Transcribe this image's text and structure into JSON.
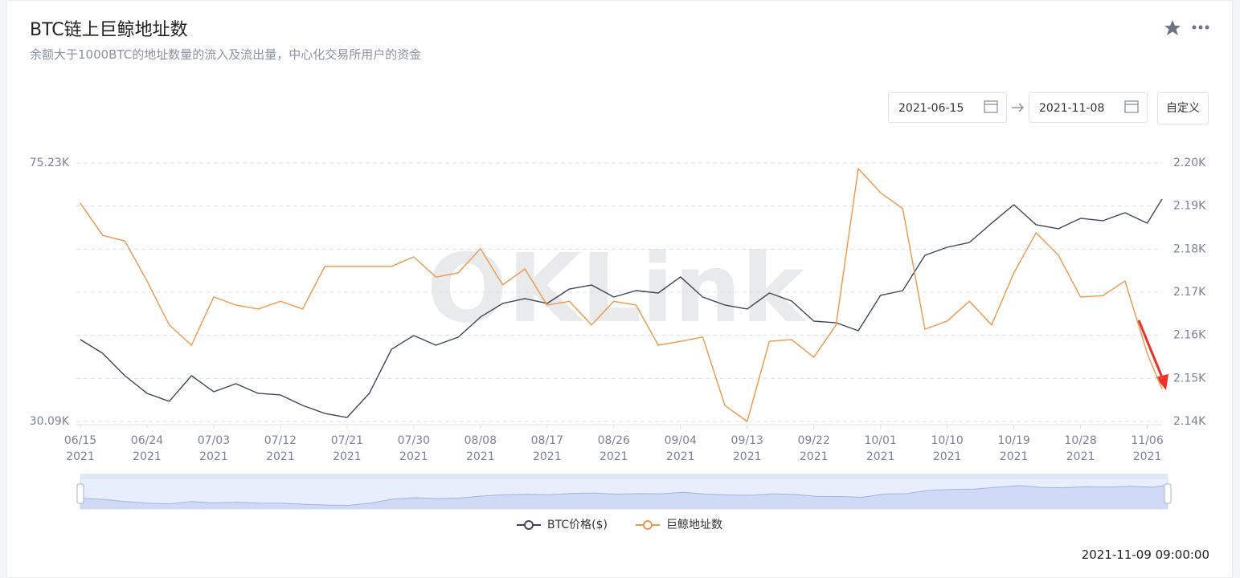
{
  "ui": {
    "start_date": "2021-06-15",
    "end_date": "2021-11-08",
    "custom_button": "自定义",
    "timestamp": "2021-11-09 09:00:00"
  },
  "chart_data": {
    "type": "line",
    "title": "BTC链上巨鲸地址数",
    "subtitle": "余额大于1000BTC的地址数量的流入及流出量，中心化交易所用户的资金",
    "watermark": "OKLink",
    "grid": true,
    "legend": "bottom",
    "x": [
      "2021-06-15",
      "2021-06-18",
      "2021-06-21",
      "2021-06-24",
      "2021-06-27",
      "2021-06-30",
      "2021-07-03",
      "2021-07-06",
      "2021-07-09",
      "2021-07-12",
      "2021-07-15",
      "2021-07-18",
      "2021-07-21",
      "2021-07-24",
      "2021-07-27",
      "2021-07-30",
      "2021-08-02",
      "2021-08-05",
      "2021-08-08",
      "2021-08-11",
      "2021-08-14",
      "2021-08-17",
      "2021-08-20",
      "2021-08-23",
      "2021-08-26",
      "2021-08-29",
      "2021-09-01",
      "2021-09-04",
      "2021-09-07",
      "2021-09-10",
      "2021-09-13",
      "2021-09-16",
      "2021-09-19",
      "2021-09-22",
      "2021-09-25",
      "2021-09-28",
      "2021-10-01",
      "2021-10-04",
      "2021-10-07",
      "2021-10-10",
      "2021-10-13",
      "2021-10-16",
      "2021-10-19",
      "2021-10-22",
      "2021-10-25",
      "2021-10-28",
      "2021-10-31",
      "2021-11-03",
      "2021-11-06",
      "2021-11-08"
    ],
    "xlim": [
      "2021-06-15",
      "2021-11-08"
    ],
    "xticks": [
      {
        "value": "2021-06-15",
        "label": [
          "06/15",
          "2021"
        ]
      },
      {
        "value": "2021-06-24",
        "label": [
          "06/24",
          "2021"
        ]
      },
      {
        "value": "2021-07-03",
        "label": [
          "07/03",
          "2021"
        ]
      },
      {
        "value": "2021-07-12",
        "label": [
          "07/12",
          "2021"
        ]
      },
      {
        "value": "2021-07-21",
        "label": [
          "07/21",
          "2021"
        ]
      },
      {
        "value": "2021-07-30",
        "label": [
          "07/30",
          "2021"
        ]
      },
      {
        "value": "2021-08-08",
        "label": [
          "08/08",
          "2021"
        ]
      },
      {
        "value": "2021-08-17",
        "label": [
          "08/17",
          "2021"
        ]
      },
      {
        "value": "2021-08-26",
        "label": [
          "08/26",
          "2021"
        ]
      },
      {
        "value": "2021-09-04",
        "label": [
          "09/04",
          "2021"
        ]
      },
      {
        "value": "2021-09-13",
        "label": [
          "09/13",
          "2021"
        ]
      },
      {
        "value": "2021-09-22",
        "label": [
          "09/22",
          "2021"
        ]
      },
      {
        "value": "2021-10-01",
        "label": [
          "10/01",
          "2021"
        ]
      },
      {
        "value": "2021-10-10",
        "label": [
          "10/10",
          "2021"
        ]
      },
      {
        "value": "2021-10-19",
        "label": [
          "10/19",
          "2021"
        ]
      },
      {
        "value": "2021-10-28",
        "label": [
          "10/28",
          "2021"
        ]
      },
      {
        "value": "2021-11-06",
        "label": [
          "11/06",
          "2021"
        ]
      }
    ],
    "ylim": [
      30090,
      75230
    ],
    "yticks": [
      {
        "value": 30090,
        "label": "30.09K"
      },
      {
        "value": 75230,
        "label": "75.23K"
      }
    ],
    "y2lim": [
      2140,
      2200
    ],
    "y2ticks": [
      {
        "value": 2140,
        "label": "2.14K"
      },
      {
        "value": 2150,
        "label": "2.15K"
      },
      {
        "value": 2160,
        "label": "2.16K"
      },
      {
        "value": 2170,
        "label": "2.17K"
      },
      {
        "value": 2180,
        "label": "2.18K"
      },
      {
        "value": 2190,
        "label": "2.19K"
      },
      {
        "value": 2200,
        "label": "2.20K"
      }
    ],
    "series": [
      {
        "name": "BTC价格($)",
        "color": "#3d4556",
        "values": [
          44390,
          42000,
          38080,
          35000,
          33600,
          38080,
          35280,
          36680,
          35000,
          34720,
          32890,
          31490,
          30790,
          35000,
          42700,
          45090,
          43410,
          44810,
          48320,
          50700,
          51540,
          50700,
          53220,
          53920,
          51820,
          52940,
          52520,
          55330,
          51820,
          50420,
          49720,
          52520,
          51120,
          47610,
          47330,
          45930,
          52100,
          52940,
          59110,
          60510,
          61350,
          64720,
          67940,
          64440,
          63740,
          65560,
          65140,
          66540,
          64720,
          68920
        ]
      },
      {
        "name": "巨鲸地址数",
        "color": "#f0974a",
        "axis": "y2",
        "values": [
          2190.7,
          2183.2,
          2181.9,
          2172.6,
          2162.4,
          2157.7,
          2168.9,
          2167.0,
          2166.1,
          2167.9,
          2166.1,
          2176.0,
          2176.0,
          2176.0,
          2176.0,
          2178.2,
          2173.5,
          2174.5,
          2180.1,
          2171.7,
          2175.4,
          2167.0,
          2167.9,
          2162.4,
          2167.9,
          2167.0,
          2157.7,
          2158.6,
          2159.6,
          2143.7,
          2140.0,
          2158.6,
          2159.0,
          2154.9,
          2162.4,
          2198.7,
          2193.1,
          2189.4,
          2161.4,
          2163.3,
          2167.9,
          2162.4,
          2174.5,
          2183.8,
          2178.6,
          2168.9,
          2169.2,
          2172.6,
          2155.8,
          2147.5
        ]
      }
    ]
  }
}
